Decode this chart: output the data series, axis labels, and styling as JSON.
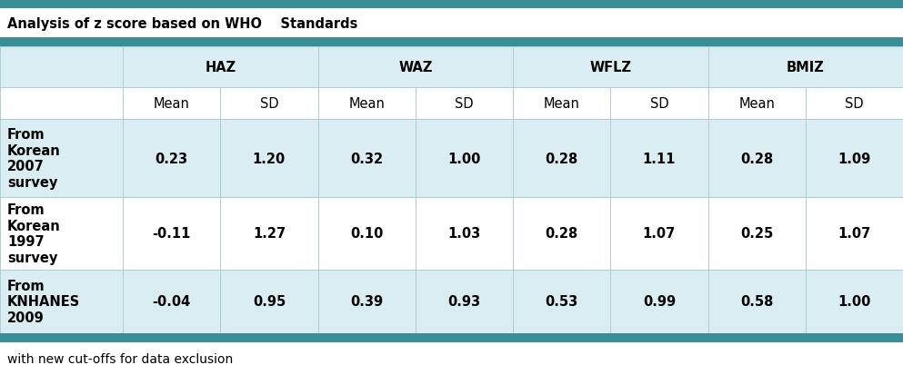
{
  "title": "Analysis of z score based on WHO    Standards",
  "footer": "with new cut-offs for data exclusion",
  "col_groups": [
    "HAZ",
    "WAZ",
    "WFLZ",
    "BMIZ"
  ],
  "sub_headers": [
    "Mean",
    "SD"
  ],
  "row_labels": [
    "From\nKorean\n2007\nsurvey",
    "From\nKorean\n1997\nsurvey",
    "From\nKNHANES\n2009"
  ],
  "data": [
    [
      0.23,
      1.2,
      0.32,
      1.0,
      0.28,
      1.11,
      0.28,
      1.09
    ],
    [
      -0.11,
      1.27,
      0.1,
      1.03,
      0.28,
      1.07,
      0.25,
      1.07
    ],
    [
      -0.04,
      0.95,
      0.39,
      0.93,
      0.53,
      0.99,
      0.58,
      1.0
    ]
  ],
  "bg_color": "#daedf2",
  "teal_color": "#3a8f96",
  "white_color": "#ffffff",
  "border_color": "#aacdd6",
  "text_color": "#000000",
  "title_fontsize": 10.5,
  "header_fontsize": 10.5,
  "data_fontsize": 10.5,
  "footer_fontsize": 10
}
